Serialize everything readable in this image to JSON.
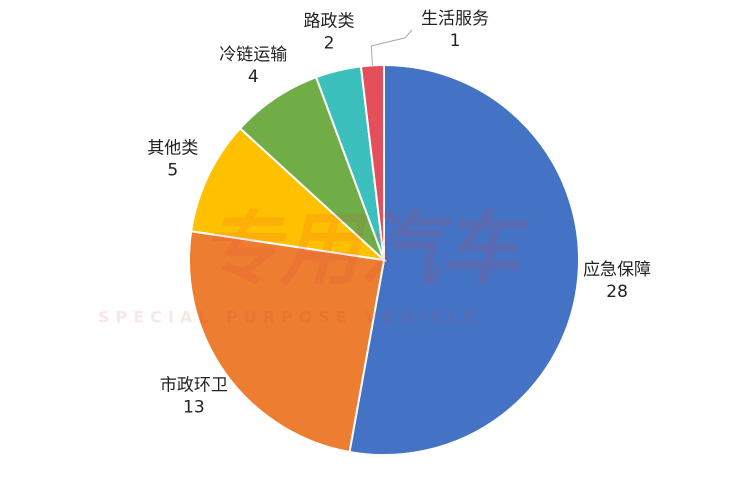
{
  "chart_data": {
    "type": "pie",
    "categories": [
      "应急保障",
      "市政环卫",
      "其他类",
      "冷链运输",
      "路政类",
      "生活服务"
    ],
    "values": [
      28,
      13,
      5,
      4,
      2,
      1
    ],
    "colors": [
      "#4472c4",
      "#ed7d31",
      "#ffc000",
      "#70ad47",
      "#3cc0bd",
      "#e54f5c"
    ],
    "watermark": "专用汽车",
    "watermark_subtitle": "SPECIAL PURPOSE VEHICLE"
  }
}
